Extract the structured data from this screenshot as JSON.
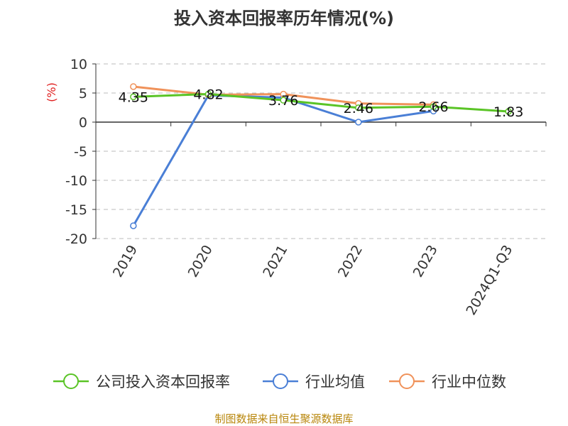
{
  "chart_data": {
    "type": "line",
    "title": "投入资本回报率历年情况(%)",
    "ylabel": "(%)",
    "xlabel": "",
    "categories": [
      "2019",
      "2020",
      "2021",
      "2022",
      "2023",
      "2024Q1-Q3"
    ],
    "yticks": [
      10,
      5,
      0,
      -5,
      -10,
      -15,
      -20
    ],
    "ylim": [
      -20,
      10
    ],
    "grid": "horizontal dashed",
    "legend_position": "bottom",
    "series": [
      {
        "name": "公司投入资本回报率",
        "color": "#5ac426",
        "values": [
          4.35,
          4.82,
          3.76,
          2.46,
          2.66,
          1.83
        ],
        "labels": [
          "4.35",
          "4.82",
          "3.76",
          "2.46",
          "2.66",
          "1.83"
        ]
      },
      {
        "name": "行业均值",
        "color": "#4a7fd6",
        "values": [
          -17.8,
          4.6,
          4.2,
          0.0,
          1.9,
          null
        ]
      },
      {
        "name": "行业中位数",
        "color": "#f0925a",
        "values": [
          6.1,
          4.7,
          4.8,
          3.2,
          3.0,
          null
        ]
      }
    ]
  },
  "source": "制图数据来自恒生聚源数据库"
}
